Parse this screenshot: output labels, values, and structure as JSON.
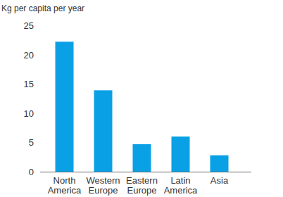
{
  "chart_data": {
    "type": "bar",
    "title": "Kg per capita per year",
    "categories": [
      "North America",
      "Western Europe",
      "Eastern Europe",
      "Latin America",
      "Asia"
    ],
    "values": [
      22.2,
      13.9,
      4.7,
      6.0,
      2.8
    ],
    "color": "#0aa0e6",
    "ylim": [
      0,
      25
    ],
    "yticks": [
      0,
      5,
      10,
      15,
      20,
      25
    ],
    "grid": false
  }
}
